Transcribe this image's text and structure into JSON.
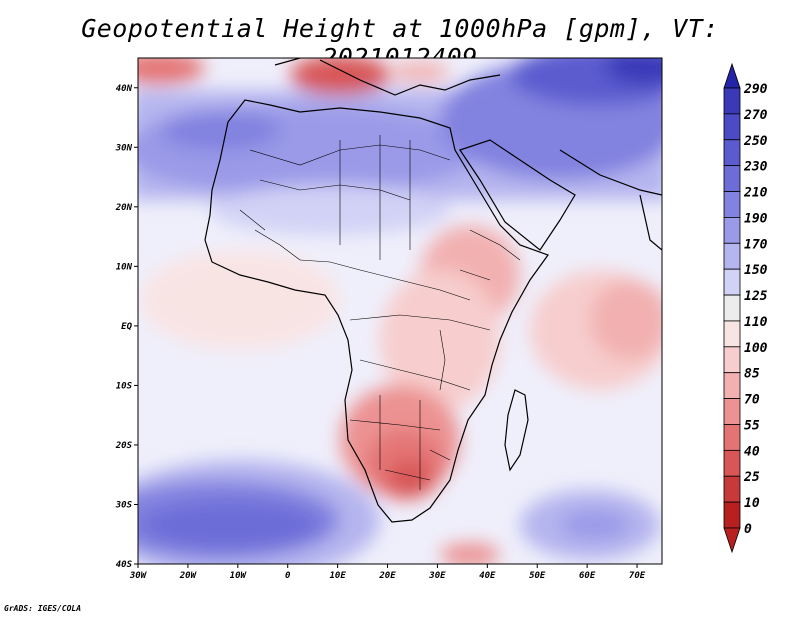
{
  "title": "Geopotential Height at 1000hPa [gpm], VT: 2021012409",
  "credit": "GrADS: IGES/COLA",
  "map": {
    "lat_labels": [
      "40N",
      "30N",
      "20N",
      "10N",
      "EQ",
      "10S",
      "20S",
      "30S",
      "40S"
    ],
    "lon_labels": [
      "30W",
      "20W",
      "10W",
      "0",
      "10E",
      "20E",
      "30E",
      "40E",
      "50E",
      "60E",
      "70E"
    ],
    "lon_range": [
      -30,
      75
    ],
    "lat_range": [
      -40,
      45
    ]
  },
  "colorbar": {
    "labels": [
      "290",
      "270",
      "250",
      "230",
      "210",
      "190",
      "170",
      "150",
      "125",
      "110",
      "100",
      "85",
      "70",
      "55",
      "40",
      "25",
      "10",
      "0"
    ],
    "colors": [
      "#2424a8",
      "#3a3ab9",
      "#4b4bc5",
      "#5b5bcf",
      "#6d6dd8",
      "#8282e0",
      "#9a9ae8",
      "#b5b5ef",
      "#d2d2f6",
      "#ecececfb",
      "#f9e4e4",
      "#f7cdcd",
      "#f2b0b0",
      "#ec9292",
      "#e47474",
      "#d85656",
      "#c83a3a",
      "#b82020"
    ]
  }
}
